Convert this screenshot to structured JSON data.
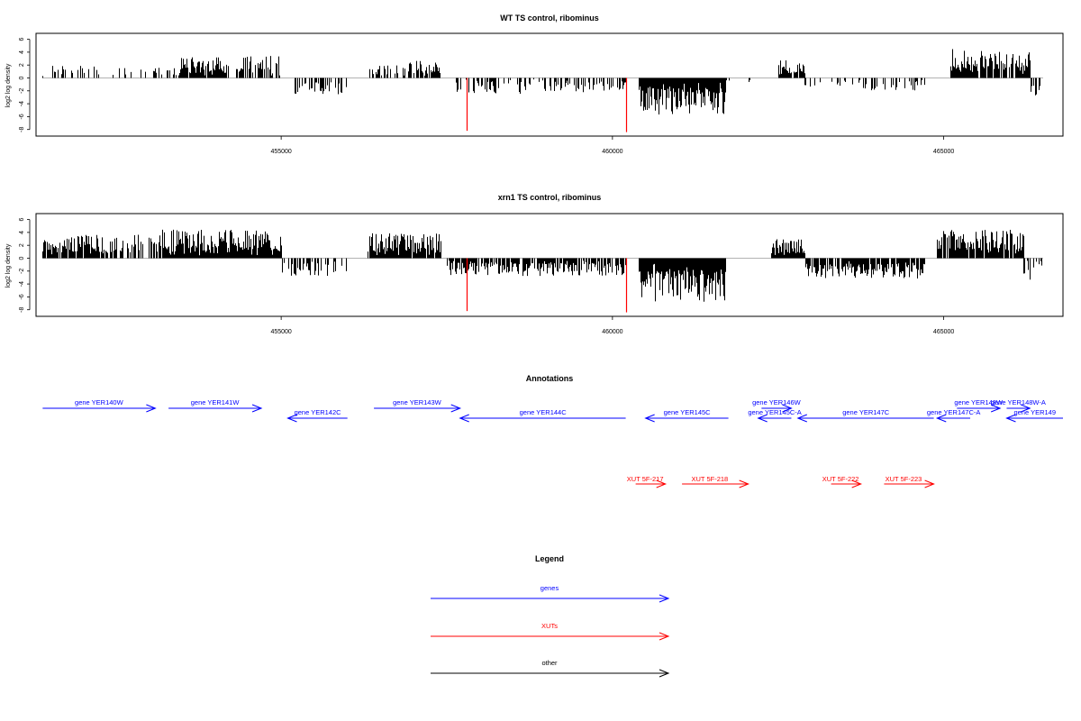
{
  "chart_data": [
    {
      "type": "bar",
      "title": "WT TS control, ribominus",
      "ylabel": "log2 log density",
      "xlabel": "",
      "xlim": [
        451300,
        466800
      ],
      "ylim": [
        -8.6,
        6.5
      ],
      "x_ticks": [
        455000,
        460000,
        465000
      ],
      "y_ticks": [
        -8,
        -6,
        -4,
        -2,
        0,
        2,
        4,
        6
      ],
      "grid": false,
      "bar_color": "#000000",
      "highlight_color": "#ff0000",
      "highlights": [
        {
          "x": 457800,
          "y": -8.2
        },
        {
          "x": 460200,
          "y": -8.4
        }
      ],
      "segments": [
        {
          "from": 451400,
          "to": 452400,
          "sign": 1,
          "amp": 2.0,
          "density": 0.28
        },
        {
          "from": 452400,
          "to": 453400,
          "sign": 1,
          "amp": 1.6,
          "density": 0.18
        },
        {
          "from": 453400,
          "to": 454200,
          "sign": 1,
          "amp": 3.2,
          "density": 0.95
        },
        {
          "from": 454300,
          "to": 454400,
          "sign": 1,
          "amp": 2.5,
          "density": 0.6
        },
        {
          "from": 454400,
          "to": 455000,
          "sign": 1,
          "amp": 3.5,
          "density": 0.5
        },
        {
          "from": 455200,
          "to": 456000,
          "sign": -1,
          "amp": 2.6,
          "density": 0.35
        },
        {
          "from": 456300,
          "to": 456900,
          "sign": 1,
          "amp": 2.0,
          "density": 0.45
        },
        {
          "from": 456900,
          "to": 457400,
          "sign": 1,
          "amp": 3.0,
          "density": 0.8
        },
        {
          "from": 457600,
          "to": 458700,
          "sign": -1,
          "amp": 2.5,
          "density": 0.55
        },
        {
          "from": 458700,
          "to": 460200,
          "sign": -1,
          "amp": 2.3,
          "density": 0.4
        },
        {
          "from": 460400,
          "to": 461700,
          "sign": -1,
          "amp": 5.8,
          "density": 1.0
        },
        {
          "from": 461700,
          "to": 462100,
          "sign": -1,
          "amp": 1.2,
          "density": 0.1
        },
        {
          "from": 462500,
          "to": 462900,
          "sign": 1,
          "amp": 2.8,
          "density": 0.9
        },
        {
          "from": 462900,
          "to": 463400,
          "sign": -1,
          "amp": 1.6,
          "density": 0.2
        },
        {
          "from": 463400,
          "to": 464700,
          "sign": -1,
          "amp": 2.0,
          "density": 0.35
        },
        {
          "from": 465100,
          "to": 465500,
          "sign": 1,
          "amp": 4.6,
          "density": 1.0
        },
        {
          "from": 465500,
          "to": 466300,
          "sign": 1,
          "amp": 4.2,
          "density": 0.85
        },
        {
          "from": 466300,
          "to": 466500,
          "sign": -1,
          "amp": 3.5,
          "density": 0.6
        }
      ]
    },
    {
      "type": "bar",
      "title": "xrn1 TS control, ribominus",
      "ylabel": "log2 log density",
      "xlabel": "",
      "xlim": [
        451300,
        466800
      ],
      "ylim": [
        -8.6,
        6.5
      ],
      "x_ticks": [
        455000,
        460000,
        465000
      ],
      "y_ticks": [
        -8,
        -6,
        -4,
        -2,
        0,
        2,
        4,
        6
      ],
      "grid": false,
      "bar_color": "#000000",
      "highlight_color": "#ff0000",
      "highlights": [
        {
          "x": 457800,
          "y": -8.2
        },
        {
          "x": 460200,
          "y": -8.4
        }
      ],
      "segments": [
        {
          "from": 451400,
          "to": 452300,
          "sign": 1,
          "amp": 3.6,
          "density": 0.85
        },
        {
          "from": 452300,
          "to": 453200,
          "sign": 1,
          "amp": 3.8,
          "density": 0.6
        },
        {
          "from": 453200,
          "to": 455000,
          "sign": 1,
          "amp": 4.5,
          "density": 1.0
        },
        {
          "from": 455000,
          "to": 456000,
          "sign": -1,
          "amp": 2.8,
          "density": 0.45
        },
        {
          "from": 456300,
          "to": 457400,
          "sign": 1,
          "amp": 4.0,
          "density": 0.95
        },
        {
          "from": 457500,
          "to": 460200,
          "sign": -1,
          "amp": 2.8,
          "density": 0.75
        },
        {
          "from": 460400,
          "to": 461700,
          "sign": -1,
          "amp": 6.8,
          "density": 1.0
        },
        {
          "from": 462400,
          "to": 462900,
          "sign": 1,
          "amp": 3.0,
          "density": 1.0
        },
        {
          "from": 462900,
          "to": 464700,
          "sign": -1,
          "amp": 3.2,
          "density": 0.9
        },
        {
          "from": 464900,
          "to": 466200,
          "sign": 1,
          "amp": 4.4,
          "density": 0.95
        },
        {
          "from": 466200,
          "to": 466500,
          "sign": -1,
          "amp": 3.5,
          "density": 0.6
        }
      ]
    }
  ],
  "annotations": {
    "title": "Annotations",
    "genes": [
      {
        "label": "gene YER140W",
        "from": 451400,
        "to": 453100,
        "dir": "+",
        "row": 0
      },
      {
        "label": "gene YER141W",
        "from": 453300,
        "to": 454700,
        "dir": "+",
        "row": 0
      },
      {
        "label": "gene YER142C",
        "from": 455100,
        "to": 456000,
        "dir": "-",
        "row": 1
      },
      {
        "label": "gene YER143W",
        "from": 456400,
        "to": 457700,
        "dir": "+",
        "row": 0
      },
      {
        "label": "gene YER144C",
        "from": 457700,
        "to": 460200,
        "dir": "-",
        "row": 1
      },
      {
        "label": "gene YER145C",
        "from": 460500,
        "to": 461750,
        "dir": "-",
        "row": 1
      },
      {
        "label": "gene YER146W",
        "from": 462250,
        "to": 462700,
        "dir": "+",
        "row": 0
      },
      {
        "label": "gene YER145C-A",
        "from": 462200,
        "to": 462700,
        "dir": "-",
        "row": 1
      },
      {
        "label": "gene YER147C",
        "from": 462800,
        "to": 464850,
        "dir": "-",
        "row": 1
      },
      {
        "label": "gene YER148W",
        "from": 465200,
        "to": 465850,
        "dir": "+",
        "row": 0
      },
      {
        "label": "gene YER148W-A",
        "from": 465950,
        "to": 466300,
        "dir": "+",
        "row": 0
      },
      {
        "label": "gene YER147C-A",
        "from": 464900,
        "to": 465400,
        "dir": "-",
        "row": 1
      },
      {
        "label": "gene YER149",
        "from": 465950,
        "to": 466850,
        "dir": "-",
        "row": 1
      }
    ],
    "xuts": [
      {
        "label": "XUT 5F-217",
        "from": 460350,
        "to": 460800,
        "dir": "+"
      },
      {
        "label": "XUT 5F-218",
        "from": 461050,
        "to": 462050,
        "dir": "+"
      },
      {
        "label": "XUT 5F-222",
        "from": 463300,
        "to": 463750,
        "dir": "+"
      },
      {
        "label": "XUT 5F-223",
        "from": 464100,
        "to": 464850,
        "dir": "+"
      }
    ]
  },
  "legend": {
    "title": "Legend",
    "items": [
      {
        "label": "genes",
        "color": "#0000ff"
      },
      {
        "label": "XUTs",
        "color": "#ff0000"
      },
      {
        "label": "other",
        "color": "#000000"
      }
    ]
  }
}
